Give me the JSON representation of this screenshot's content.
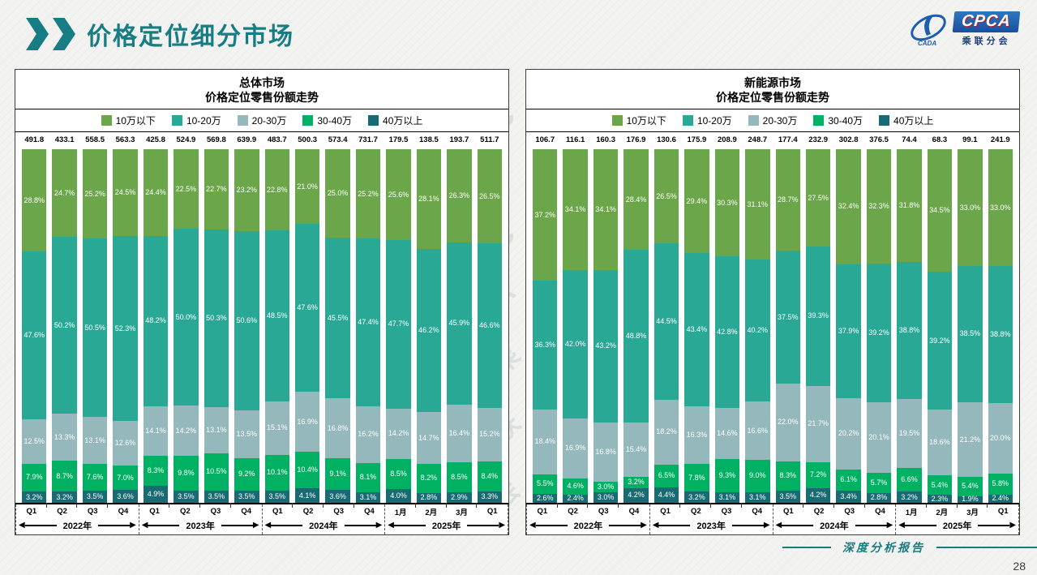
{
  "header": {
    "title": "价格定位细分市场",
    "logo": {
      "brand": "CPCA",
      "sub": "乘联分会",
      "icon_text": "CADA"
    }
  },
  "footer": {
    "report_label": "深度分析报告",
    "page_number": "28"
  },
  "watermark": "CPCA 乘联会",
  "colors": {
    "under10": "#6ca64a",
    "r10_20": "#29a995",
    "r20_30": "#94b8bb",
    "r30_40": "#00b164",
    "over40": "#186a73"
  },
  "x_axis": {
    "quarters": [
      "Q1",
      "Q2",
      "Q3",
      "Q4",
      "Q1",
      "Q2",
      "Q3",
      "Q4",
      "Q1",
      "Q2",
      "Q3",
      "Q4",
      "1月",
      "2月",
      "3月",
      "Q1"
    ],
    "year_groups": [
      {
        "label": "2022年"
      },
      {
        "label": "2023年"
      },
      {
        "label": "2024年"
      },
      {
        "label": "2025年"
      }
    ]
  },
  "chart_data": [
    {
      "type": "bar",
      "stacked": true,
      "title_line1": "总体市场",
      "title_line2": "价格定位零售份额走势",
      "categories": [
        "2022 Q1",
        "2022 Q2",
        "2022 Q3",
        "2022 Q4",
        "2023 Q1",
        "2023 Q2",
        "2023 Q3",
        "2023 Q4",
        "2024 Q1",
        "2024 Q2",
        "2024 Q3",
        "2024 Q4",
        "2025 1月",
        "2025 2月",
        "2025 3月",
        "2025 Q1"
      ],
      "totals": [
        491.8,
        433.1,
        558.5,
        563.3,
        425.8,
        524.9,
        569.8,
        639.9,
        483.7,
        500.3,
        573.4,
        731.7,
        179.5,
        138.5,
        193.7,
        511.7
      ],
      "series": [
        {
          "name": "10万以下",
          "color_key": "under10",
          "values": [
            28.8,
            24.7,
            25.2,
            24.5,
            24.4,
            22.5,
            22.7,
            23.2,
            22.8,
            21.0,
            25.0,
            25.2,
            25.6,
            28.1,
            26.3,
            26.5
          ]
        },
        {
          "name": "10-20万",
          "color_key": "r10_20",
          "values": [
            47.6,
            50.2,
            50.5,
            52.3,
            48.2,
            50.0,
            50.3,
            50.6,
            48.5,
            47.6,
            45.5,
            47.4,
            47.7,
            46.2,
            45.9,
            46.6
          ]
        },
        {
          "name": "20-30万",
          "color_key": "r20_30",
          "values": [
            12.5,
            13.3,
            13.1,
            12.6,
            14.1,
            14.2,
            13.1,
            13.5,
            15.1,
            16.9,
            16.8,
            16.2,
            14.2,
            14.7,
            16.4,
            15.2
          ]
        },
        {
          "name": "30-40万",
          "color_key": "r30_40",
          "values": [
            7.9,
            8.7,
            7.6,
            7.0,
            8.3,
            9.8,
            10.5,
            9.2,
            10.1,
            10.4,
            9.1,
            8.1,
            8.5,
            8.2,
            8.5,
            8.4
          ]
        },
        {
          "name": "40万以上",
          "color_key": "over40",
          "values": [
            3.2,
            3.2,
            3.5,
            3.6,
            4.9,
            3.5,
            3.5,
            3.5,
            3.5,
            4.1,
            3.6,
            3.1,
            4.0,
            2.8,
            2.9,
            3.3
          ]
        }
      ]
    },
    {
      "type": "bar",
      "stacked": true,
      "title_line1": "新能源市场",
      "title_line2": "价格定位零售份额走势",
      "categories": [
        "2022 Q1",
        "2022 Q2",
        "2022 Q3",
        "2022 Q4",
        "2023 Q1",
        "2023 Q2",
        "2023 Q3",
        "2023 Q4",
        "2024 Q1",
        "2024 Q2",
        "2024 Q3",
        "2024 Q4",
        "2025 1月",
        "2025 2月",
        "2025 3月",
        "2025 Q1"
      ],
      "totals": [
        106.7,
        116.1,
        160.3,
        176.9,
        130.6,
        175.9,
        208.9,
        248.7,
        177.4,
        232.9,
        302.8,
        376.5,
        74.4,
        68.3,
        99.1,
        241.9
      ],
      "series": [
        {
          "name": "10万以下",
          "color_key": "under10",
          "values": [
            37.2,
            34.1,
            34.1,
            28.4,
            26.5,
            29.4,
            30.3,
            31.1,
            28.7,
            27.5,
            32.4,
            32.3,
            31.8,
            34.5,
            33.0,
            33.0
          ]
        },
        {
          "name": "10-20万",
          "color_key": "r10_20",
          "values": [
            36.3,
            42.0,
            43.2,
            48.8,
            44.5,
            43.4,
            42.8,
            40.2,
            37.5,
            39.3,
            37.9,
            39.2,
            38.8,
            39.2,
            38.5,
            38.8
          ]
        },
        {
          "name": "20-30万",
          "color_key": "r20_30",
          "values": [
            18.4,
            16.9,
            16.8,
            15.4,
            18.2,
            16.3,
            14.6,
            16.6,
            22.0,
            21.7,
            20.2,
            20.1,
            19.5,
            18.6,
            21.2,
            20.0
          ]
        },
        {
          "name": "30-40万",
          "color_key": "r30_40",
          "values": [
            5.5,
            4.6,
            3.0,
            3.2,
            6.5,
            7.8,
            9.3,
            9.0,
            8.3,
            7.2,
            6.1,
            5.7,
            6.6,
            5.4,
            5.4,
            5.8
          ]
        },
        {
          "name": "40万以上",
          "color_key": "over40",
          "values": [
            2.6,
            2.4,
            3.0,
            4.2,
            4.4,
            3.2,
            3.1,
            3.1,
            3.5,
            4.2,
            3.4,
            2.8,
            3.2,
            2.3,
            1.9,
            2.4
          ]
        }
      ]
    }
  ]
}
